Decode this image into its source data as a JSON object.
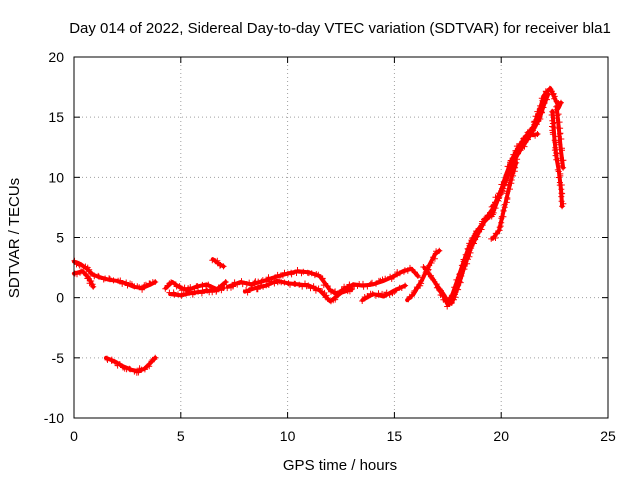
{
  "chart_data": {
    "type": "scatter",
    "title": "Day 014 of 2022, Sidereal Day-to-day VTEC variation (SDTVAR) for receiver bla1",
    "xlabel": "GPS time / hours",
    "ylabel": "SDTVAR / TECUs",
    "xlim": [
      0,
      25
    ],
    "ylim": [
      -10,
      20
    ],
    "xticks": [
      "0",
      "5",
      "10",
      "15",
      "20",
      "25"
    ],
    "yticks": [
      "-10",
      "-5",
      "0",
      "5",
      "10",
      "15",
      "20"
    ],
    "grid": true,
    "marker": "+",
    "series": [
      {
        "name": "SDTVAR",
        "color": "#ff0000",
        "segments": [
          [
            [
              0.0,
              3.0
            ],
            [
              0.3,
              2.8
            ],
            [
              0.6,
              2.4
            ],
            [
              0.9,
              1.9
            ],
            [
              1.2,
              1.7
            ],
            [
              1.6,
              1.5
            ],
            [
              2.0,
              1.4
            ],
            [
              2.4,
              1.2
            ],
            [
              2.8,
              0.9
            ],
            [
              3.2,
              0.8
            ],
            [
              3.6,
              1.1
            ],
            [
              3.8,
              1.3
            ]
          ],
          [
            [
              0.0,
              2.0
            ],
            [
              0.4,
              2.2
            ],
            [
              0.7,
              1.6
            ],
            [
              0.9,
              0.9
            ]
          ],
          [
            [
              1.5,
              -5.0
            ],
            [
              1.9,
              -5.3
            ],
            [
              2.3,
              -5.7
            ],
            [
              2.7,
              -6.0
            ],
            [
              3.0,
              -6.1
            ],
            [
              3.3,
              -5.9
            ],
            [
              3.6,
              -5.4
            ],
            [
              3.8,
              -5.0
            ]
          ],
          [
            [
              4.3,
              0.8
            ],
            [
              4.6,
              1.3
            ],
            [
              4.9,
              0.9
            ],
            [
              5.3,
              0.6
            ],
            [
              5.7,
              0.9
            ],
            [
              6.2,
              1.1
            ],
            [
              6.7,
              0.7
            ],
            [
              7.1,
              1.3
            ]
          ],
          [
            [
              4.5,
              0.3
            ],
            [
              5.0,
              0.2
            ],
            [
              5.5,
              0.4
            ],
            [
              6.0,
              0.5
            ],
            [
              6.5,
              0.6
            ],
            [
              7.0,
              0.8
            ]
          ],
          [
            [
              6.5,
              3.2
            ],
            [
              6.8,
              2.8
            ],
            [
              7.0,
              2.6
            ]
          ],
          [
            [
              7.2,
              0.9
            ],
            [
              7.8,
              1.3
            ],
            [
              8.3,
              1.1
            ],
            [
              8.9,
              1.4
            ],
            [
              9.4,
              1.7
            ],
            [
              10.0,
              2.0
            ],
            [
              10.5,
              2.2
            ],
            [
              11.0,
              2.1
            ],
            [
              11.5,
              1.8
            ],
            [
              12.0,
              0.6
            ],
            [
              12.3,
              0.3
            ],
            [
              12.7,
              0.8
            ],
            [
              13.1,
              1.1
            ],
            [
              13.5,
              1.0
            ],
            [
              14.0,
              1.1
            ],
            [
              14.5,
              1.4
            ],
            [
              15.0,
              1.8
            ],
            [
              15.4,
              2.2
            ],
            [
              15.8,
              2.4
            ],
            [
              16.1,
              1.8
            ]
          ],
          [
            [
              8.0,
              0.5
            ],
            [
              8.5,
              0.8
            ],
            [
              9.0,
              1.0
            ],
            [
              9.5,
              1.4
            ],
            [
              10.0,
              1.2
            ],
            [
              10.5,
              1.1
            ],
            [
              11.0,
              1.0
            ],
            [
              11.5,
              0.6
            ],
            [
              12.0,
              -0.3
            ],
            [
              12.5,
              0.4
            ],
            [
              13.0,
              0.7
            ]
          ],
          [
            [
              13.5,
              -0.2
            ],
            [
              14.0,
              0.3
            ],
            [
              14.5,
              0.1
            ],
            [
              15.0,
              0.6
            ],
            [
              15.5,
              1.0
            ]
          ],
          [
            [
              15.6,
              -0.2
            ],
            [
              15.9,
              0.3
            ],
            [
              16.1,
              0.9
            ],
            [
              16.3,
              1.5
            ],
            [
              16.6,
              2.6
            ],
            [
              16.9,
              3.6
            ],
            [
              17.1,
              3.9
            ]
          ],
          [
            [
              16.4,
              2.5
            ],
            [
              16.7,
              1.8
            ],
            [
              17.0,
              1.0
            ],
            [
              17.3,
              0.3
            ],
            [
              17.5,
              -0.3
            ],
            [
              17.7,
              0.2
            ],
            [
              17.9,
              1.2
            ],
            [
              18.2,
              2.8
            ],
            [
              18.5,
              4.3
            ],
            [
              18.8,
              5.4
            ],
            [
              19.2,
              6.3
            ],
            [
              19.6,
              7.0
            ],
            [
              19.9,
              8.4
            ],
            [
              20.2,
              10.1
            ],
            [
              20.5,
              11.5
            ],
            [
              20.8,
              12.5
            ],
            [
              21.1,
              13.3
            ],
            [
              21.5,
              14.2
            ],
            [
              21.8,
              15.6
            ],
            [
              22.0,
              16.8
            ],
            [
              22.3,
              17.4
            ],
            [
              22.5,
              16.6
            ],
            [
              22.7,
              15.8
            ],
            [
              22.8,
              16.2
            ]
          ],
          [
            [
              17.0,
              0.9
            ],
            [
              17.3,
              0.1
            ],
            [
              17.5,
              -0.6
            ],
            [
              17.7,
              -0.4
            ],
            [
              18.0,
              1.0
            ],
            [
              18.3,
              2.7
            ],
            [
              18.6,
              4.2
            ],
            [
              19.0,
              5.6
            ],
            [
              19.3,
              6.6
            ],
            [
              19.6,
              7.4
            ],
            [
              19.9,
              8.6
            ],
            [
              20.2,
              9.6
            ],
            [
              20.5,
              11.0
            ],
            [
              20.8,
              12.0
            ],
            [
              21.1,
              12.8
            ],
            [
              21.4,
              13.6
            ],
            [
              21.8,
              14.9
            ],
            [
              22.0,
              16.0
            ],
            [
              22.2,
              16.9
            ]
          ],
          [
            [
              19.6,
              4.9
            ],
            [
              19.9,
              5.6
            ],
            [
              20.1,
              7.1
            ],
            [
              20.3,
              8.6
            ],
            [
              20.5,
              10.1
            ],
            [
              20.7,
              11.2
            ]
          ],
          [
            [
              22.4,
              15.5
            ],
            [
              22.5,
              13.0
            ],
            [
              22.6,
              11.5
            ],
            [
              22.7,
              10.5
            ],
            [
              22.8,
              9.0
            ],
            [
              22.85,
              7.6
            ]
          ],
          [
            [
              22.6,
              15.8
            ],
            [
              22.7,
              14.0
            ],
            [
              22.8,
              12.2
            ],
            [
              22.9,
              10.8
            ]
          ],
          [
            [
              21.5,
              13.5
            ],
            [
              21.7,
              13.6
            ]
          ]
        ]
      }
    ]
  }
}
